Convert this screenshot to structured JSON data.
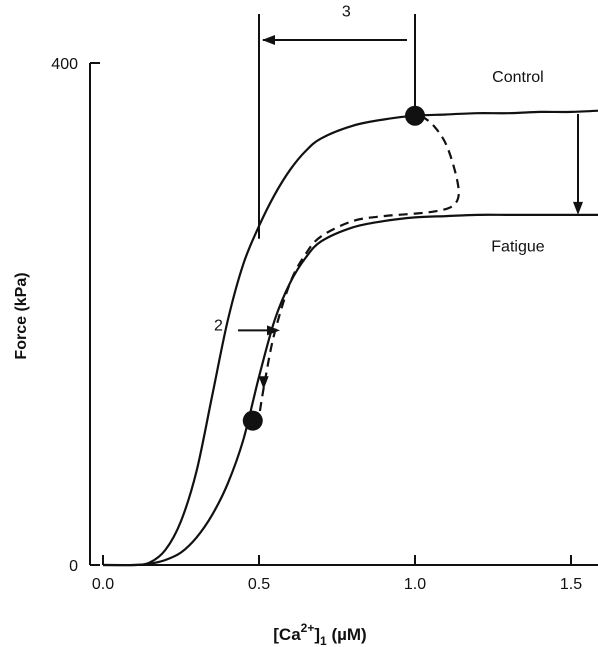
{
  "chart_data": {
    "type": "line",
    "xlabel_parts": {
      "base": "[Ca",
      "sup": "2+",
      "mid": "]",
      "sub": "1",
      "unit": " (µM)"
    },
    "ylabel": "Force (kPa)",
    "xlim": [
      0.0,
      1.6
    ],
    "ylim": [
      0,
      400
    ],
    "x_ticks": [
      {
        "value": 0.0,
        "label": "0.0"
      },
      {
        "value": 0.5,
        "label": "0.5"
      },
      {
        "value": 1.0,
        "label": "1.0"
      },
      {
        "value": 1.5,
        "label": "1.5"
      }
    ],
    "y_ticks": [
      {
        "value": 0,
        "label": "0"
      },
      {
        "value": 400,
        "label": "400"
      }
    ],
    "series": [
      {
        "name": "Control",
        "style": "solid",
        "x": [
          0.0,
          0.1,
          0.15,
          0.2,
          0.25,
          0.3,
          0.35,
          0.4,
          0.45,
          0.5,
          0.55,
          0.6,
          0.65,
          0.7,
          0.8,
          0.9,
          1.0,
          1.1,
          1.2,
          1.3,
          1.4,
          1.5,
          1.6
        ],
        "y": [
          0,
          0,
          2,
          12,
          35,
          75,
          135,
          195,
          240,
          270,
          295,
          315,
          330,
          340,
          350,
          355,
          358,
          359,
          360,
          360,
          361,
          361,
          362
        ]
      },
      {
        "name": "Fatigue",
        "style": "solid",
        "x": [
          0.0,
          0.1,
          0.15,
          0.2,
          0.25,
          0.3,
          0.35,
          0.4,
          0.45,
          0.5,
          0.55,
          0.6,
          0.65,
          0.7,
          0.8,
          0.9,
          1.0,
          1.1,
          1.2,
          1.3,
          1.4,
          1.5,
          1.6
        ],
        "y": [
          0,
          0,
          1,
          4,
          10,
          22,
          40,
          65,
          100,
          150,
          195,
          225,
          245,
          258,
          269,
          274,
          277,
          278,
          279,
          279,
          279,
          279,
          279
        ]
      },
      {
        "name": "",
        "style": "dashed",
        "x": [
          1.02,
          1.06,
          1.1,
          1.13,
          1.14,
          1.12,
          1.07,
          1.0,
          0.9,
          0.8,
          0.7,
          0.65,
          0.6,
          0.55,
          0.52,
          0.5
        ],
        "y": [
          358,
          350,
          335,
          312,
          295,
          286,
          282,
          280,
          278,
          274,
          262,
          248,
          225,
          185,
          148,
          118
        ]
      }
    ],
    "points": [
      {
        "x": 1.0,
        "y": 358
      },
      {
        "x": 0.48,
        "y": 115
      }
    ],
    "annotations": [
      {
        "label": "Control",
        "x": 1.33,
        "y": 385
      },
      {
        "label": "Fatigue",
        "x": 1.33,
        "y": 250
      },
      {
        "label": "2",
        "x": 0.37,
        "y": 187
      },
      {
        "label": "3",
        "x": 0.78,
        "y": 437
      }
    ],
    "grid": false,
    "legend": "none"
  }
}
